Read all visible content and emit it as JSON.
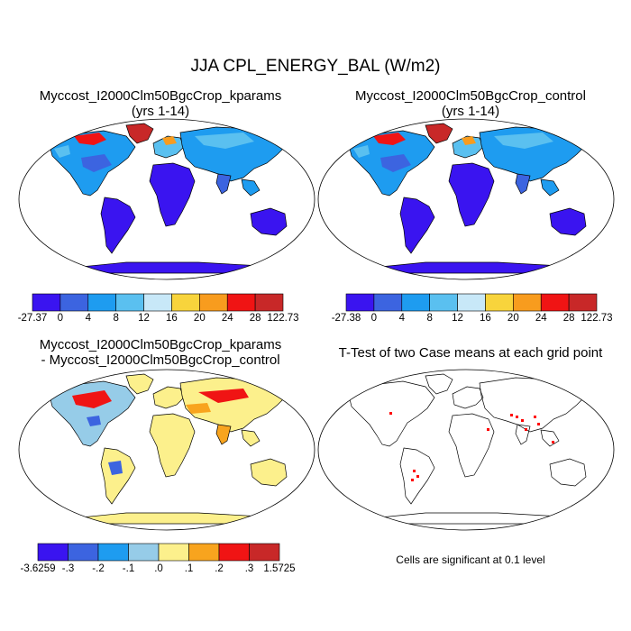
{
  "figure": {
    "title": "JJA CPL_ENERGY_BAL (W/m2)"
  },
  "panels": [
    {
      "title_line1": "Myccost_I2000Clm50BgcCrop_kparams",
      "title_line2": "(yrs 1-14)",
      "colorbar": {
        "labels": [
          "-27.37",
          "0",
          "4",
          "8",
          "12",
          "16",
          "20",
          "24",
          "28",
          "122.73"
        ],
        "colors": [
          "#3a14f0",
          "#3c64e0",
          "#1e9cf0",
          "#5ac0f0",
          "#c8e8f8",
          "#f8d43c",
          "#f89c1e",
          "#f01414",
          "#c82828"
        ]
      }
    },
    {
      "title_line1": "Myccost_I2000Clm50BgcCrop_control",
      "title_line2": "(yrs 1-14)",
      "colorbar": {
        "labels": [
          "-27.38",
          "0",
          "4",
          "8",
          "12",
          "16",
          "20",
          "24",
          "28",
          "122.73"
        ],
        "colors": [
          "#3a14f0",
          "#3c64e0",
          "#1e9cf0",
          "#5ac0f0",
          "#c8e8f8",
          "#f8d43c",
          "#f89c1e",
          "#f01414",
          "#c82828"
        ]
      }
    },
    {
      "title_line1": "Myccost_I2000Clm50BgcCrop_kparams",
      "title_line2": "- Myccost_I2000Clm50BgcCrop_control",
      "colorbar": {
        "labels": [
          "-3.6259",
          "-.3",
          "-.2",
          "-.1",
          ".0",
          ".1",
          ".2",
          ".3",
          "1.5725"
        ],
        "colors": [
          "#3a14f0",
          "#3c64e0",
          "#1e9cf0",
          "#96cce8",
          "#fcf08c",
          "#f8a41e",
          "#f01414",
          "#c82828"
        ]
      }
    },
    {
      "title_line1": "T-Test of two Case means at each grid point",
      "note": "Cells are significant at 0.1 level",
      "significant_color": "#ff0000"
    }
  ]
}
